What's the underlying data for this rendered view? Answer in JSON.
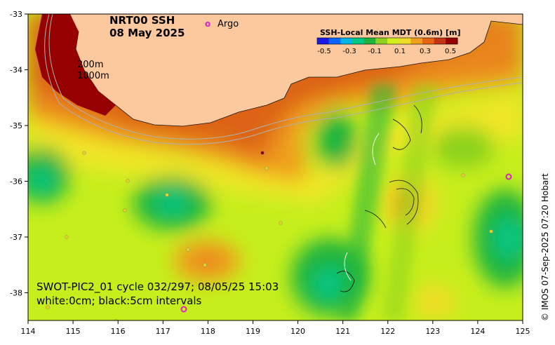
{
  "map": {
    "title_line1": "NRT00 SSH",
    "title_line2": "08 May 2025",
    "argo_marker": "o",
    "argo_label": "Argo",
    "contour_label_200": "200m",
    "contour_label_1000": "1000m",
    "swot_line1": "SWOT-PIC2_01 cycle 032/297; 08/05/25 15:03",
    "swot_line2": "white:0cm; black:5cm intervals",
    "credit": "© IMOS 07-Sep-2025 07:20 Hobart",
    "x_ticks": [
      "114",
      "115",
      "116",
      "117",
      "118",
      "119",
      "120",
      "121",
      "122",
      "123",
      "124",
      "125"
    ],
    "y_ticks": [
      "-33",
      "-34",
      "-35",
      "-36",
      "-37",
      "-38"
    ]
  },
  "colorbar": {
    "title": "SSH-Local Mean MDT (0.6m) [m]",
    "ticks": [
      "-0.5",
      "-0.3",
      "-0.1",
      "0.1",
      "0.3",
      "0.5"
    ],
    "colors": [
      "#1a1ae6",
      "#0c64ff",
      "#00b4e6",
      "#00c887",
      "#1eb43c",
      "#8cd21e",
      "#d2f01e",
      "#f0dc28",
      "#f0a01e",
      "#e66414",
      "#c83214",
      "#960000"
    ]
  },
  "colors": {
    "land": "#fcc99e",
    "background": "#c6ee1c"
  }
}
